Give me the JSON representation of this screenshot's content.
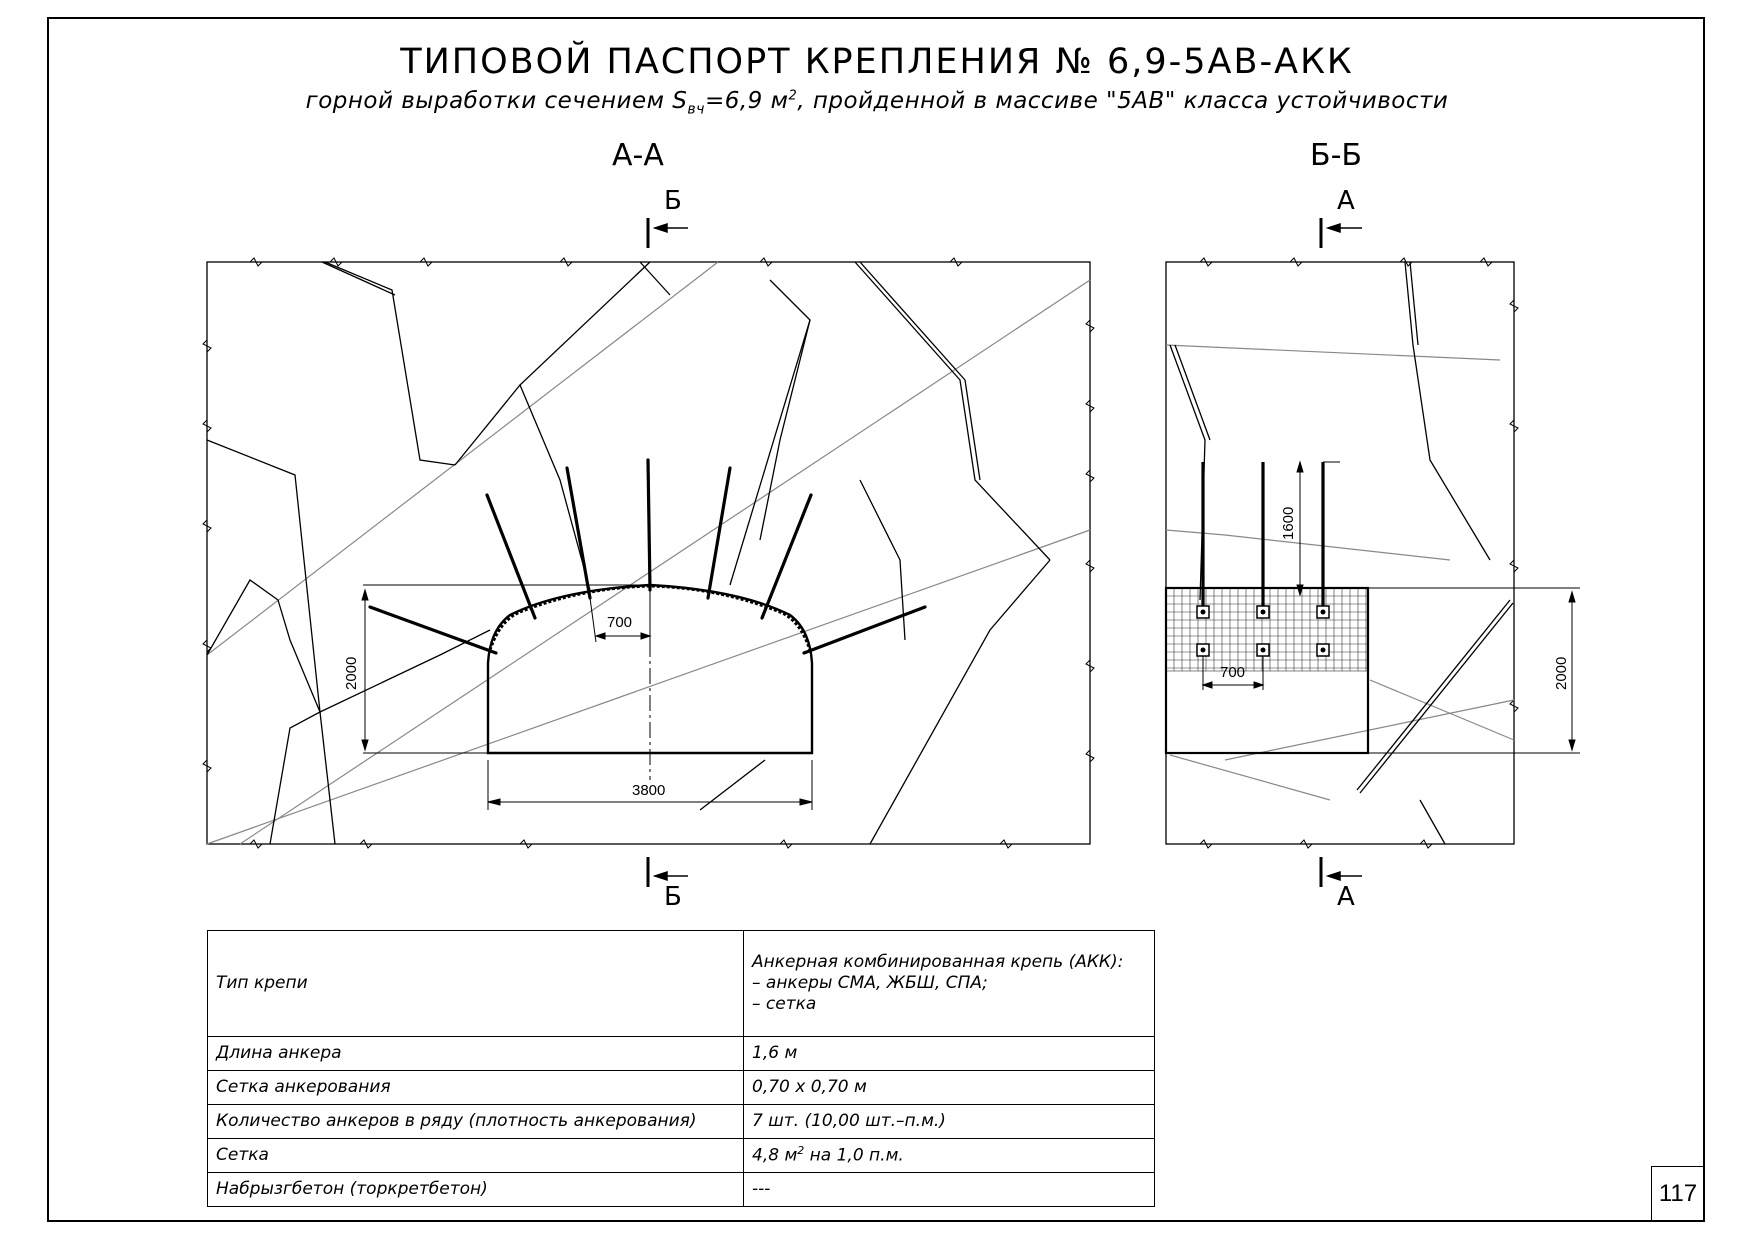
{
  "title": {
    "main": "ТИПОВОЙ ПАСПОРТ КРЕПЛЕНИЯ № 6,9-5АВ-АКК",
    "sub_before": "горной выработки сечением S",
    "sub_index": "вч",
    "sub_value": "=6,9 м",
    "sub_power": "2",
    "sub_after": ", пройденной в массиве \"5АВ\" класса устойчивости"
  },
  "section_aa": {
    "label": "А-А",
    "cut_letter_top": "Б",
    "cut_letter_bottom": "Б",
    "dim_height": "2000",
    "dim_width": "3800",
    "dim_spacing": "700"
  },
  "section_bb": {
    "label": "Б-Б",
    "cut_letter_top": "А",
    "cut_letter_bottom": "А",
    "dim_anchor": "1600",
    "dim_spacing": "700",
    "dim_height": "2000"
  },
  "spec_table": {
    "rows": [
      {
        "param": "Тип крепи",
        "value_lines": [
          "Анкерная комбинированная крепь (АКК):",
          "– анкеры СМА, ЖБШ, СПА;",
          "– сетка"
        ]
      },
      {
        "param": "Длина анкера",
        "value": "1,6 м"
      },
      {
        "param": "Сетка анкерования",
        "value": "0,70 х 0,70 м"
      },
      {
        "param": "Количество анкеров в ряду (плотность анкерования)",
        "value": "7 шт. (10,00 шт.–п.м.)"
      },
      {
        "param": "Сетка",
        "value_before": "4,8 м",
        "value_power": "2",
        "value_after": " на 1,0 п.м."
      },
      {
        "param": "Набрызгбетон (торкретбетон)",
        "value": "---"
      }
    ]
  },
  "page_number": "117"
}
